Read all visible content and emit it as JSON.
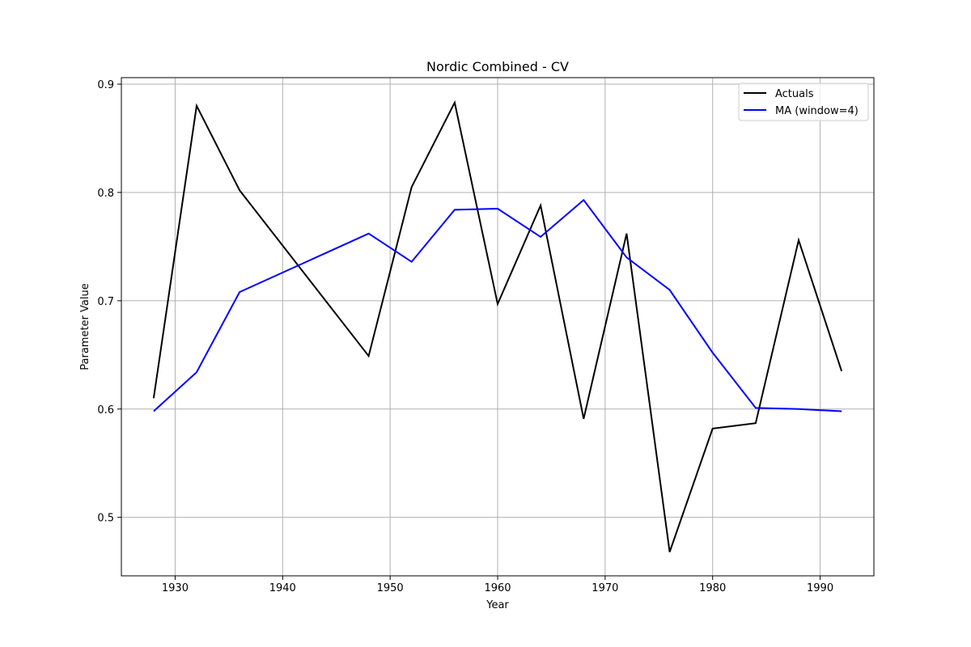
{
  "chart_data": {
    "type": "line",
    "title": "Nordic Combined - CV",
    "xlabel": "Year",
    "ylabel": "Parameter Value",
    "xlim": [
      1925,
      1995
    ],
    "ylim": [
      0.446,
      0.906
    ],
    "xticks": [
      1930,
      1940,
      1950,
      1960,
      1970,
      1980,
      1990
    ],
    "yticks": [
      0.5,
      0.6,
      0.7,
      0.8,
      0.9
    ],
    "xtick_labels": [
      "1930",
      "1940",
      "1950",
      "1960",
      "1970",
      "1980",
      "1990"
    ],
    "ytick_labels": [
      "0.5",
      "0.6",
      "0.7",
      "0.8",
      "0.9"
    ],
    "grid": true,
    "legend_position": "top-right",
    "x": [
      1928,
      1932,
      1936,
      1948,
      1952,
      1956,
      1960,
      1964,
      1968,
      1972,
      1976,
      1980,
      1984,
      1988,
      1992
    ],
    "series": [
      {
        "name": "Actuals",
        "color": "#000000",
        "values": [
          0.61,
          0.88,
          0.802,
          0.649,
          0.805,
          0.883,
          0.697,
          0.788,
          0.591,
          0.762,
          0.468,
          0.582,
          0.587,
          0.756,
          0.635
        ]
      },
      {
        "name": "MA (window=4)",
        "color": "#0000ff",
        "values": [
          0.598,
          0.634,
          0.708,
          0.762,
          0.736,
          0.784,
          0.785,
          0.759,
          0.793,
          0.74,
          0.71,
          0.652,
          0.601,
          0.6,
          0.598
        ]
      }
    ]
  }
}
